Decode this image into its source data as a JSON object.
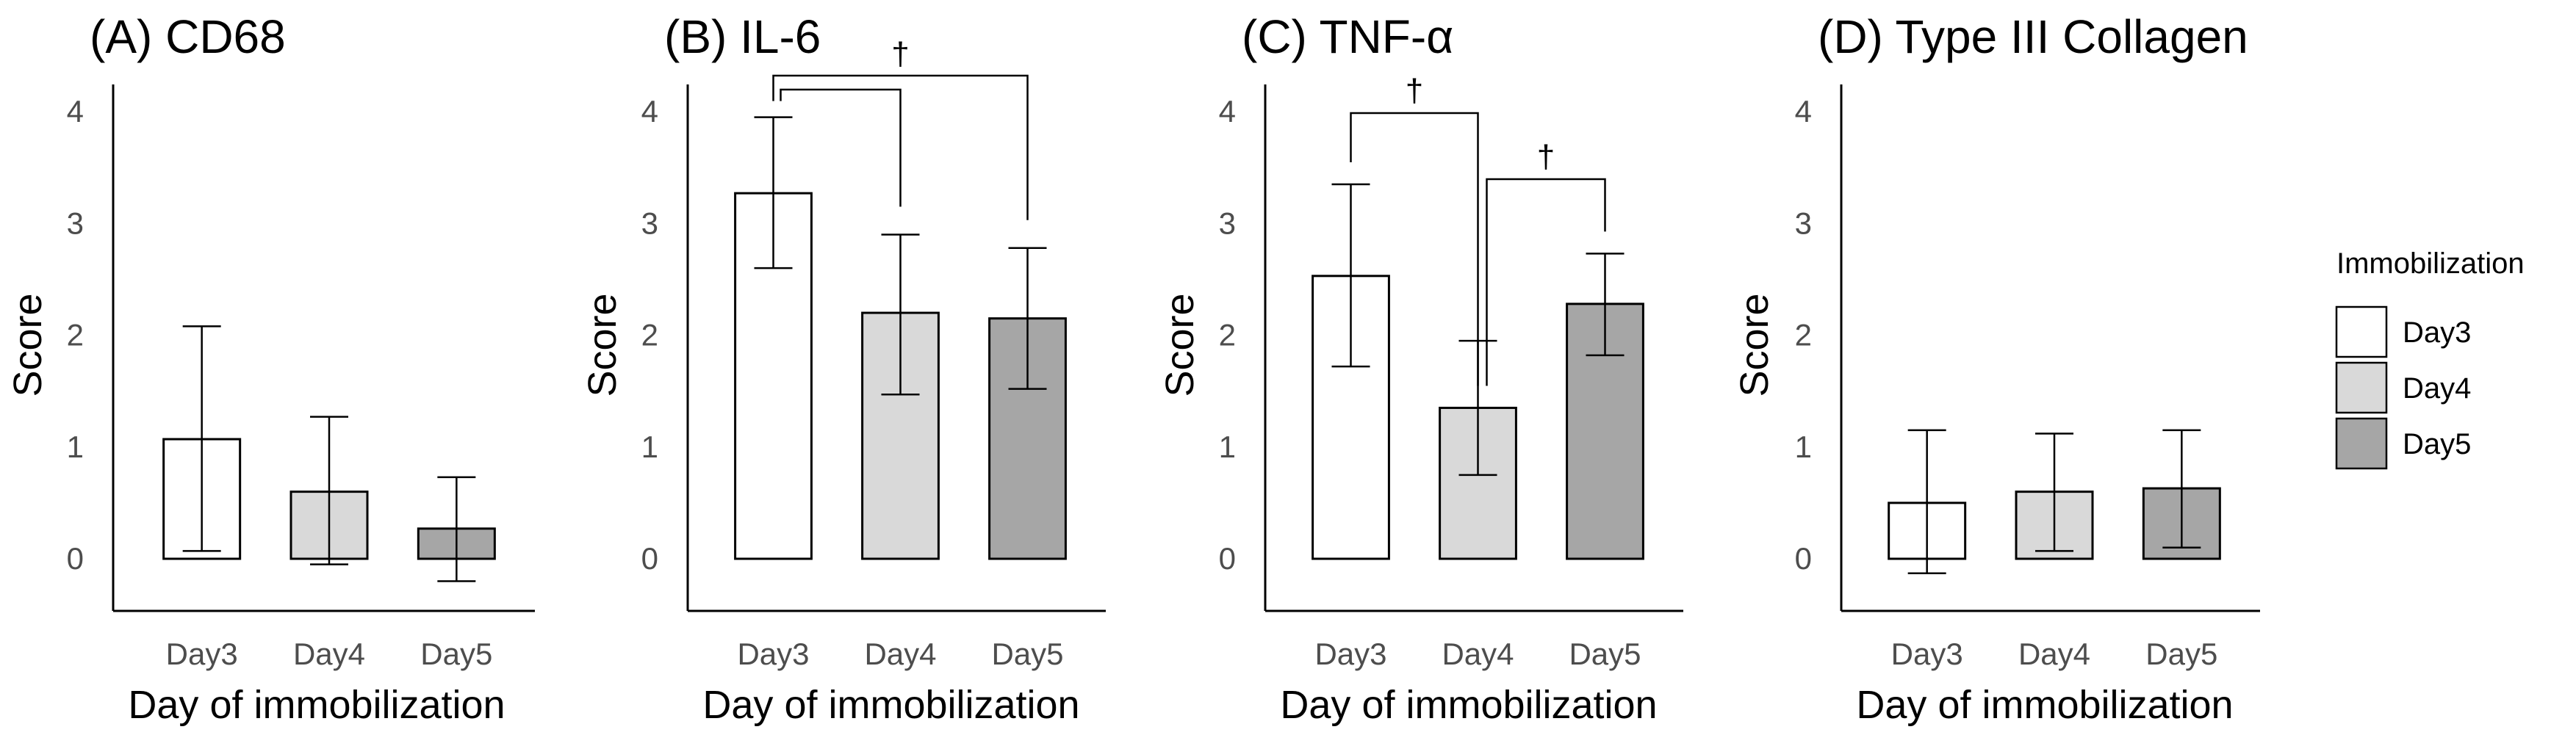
{
  "figure": {
    "legend": {
      "title": "Immobilization",
      "placement": "right",
      "entries": [
        {
          "label": "Day3",
          "color": "#ffffff"
        },
        {
          "label": "Day4",
          "color": "#d9d9d9"
        },
        {
          "label": "Day5",
          "color": "#a6a6a6"
        }
      ]
    }
  },
  "chart_data": [
    {
      "type": "bar",
      "title": "(A) CD68",
      "xlabel": "Day of immobilization",
      "ylabel": "Score",
      "ylim": [
        0,
        4
      ],
      "yticks": [
        "0",
        "1",
        "2",
        "3",
        "4"
      ],
      "categories": [
        "Day3",
        "Day4",
        "Day5"
      ],
      "values": [
        1.07,
        0.6,
        0.27
      ],
      "error_low": [
        0.07,
        -0.05,
        -0.2
      ],
      "error_high": [
        2.08,
        1.27,
        0.73
      ],
      "significance": []
    },
    {
      "type": "bar",
      "title": "(B) IL-6",
      "xlabel": "Day of immobilization",
      "ylabel": "Score",
      "ylim": [
        0,
        4
      ],
      "yticks": [
        "0",
        "1",
        "2",
        "3",
        "4"
      ],
      "categories": [
        "Day3",
        "Day4",
        "Day5"
      ],
      "values": [
        3.27,
        2.2,
        2.15
      ],
      "error_low": [
        2.6,
        1.47,
        1.52
      ],
      "error_high": [
        3.95,
        2.9,
        2.78
      ],
      "significance": [
        {
          "from": 0,
          "to": 1,
          "label": "†"
        },
        {
          "from": 0,
          "to": 2,
          "label": "†"
        }
      ]
    },
    {
      "type": "bar",
      "title": "(C) TNF-α",
      "xlabel": "Day of immobilization",
      "ylabel": "Score",
      "ylim": [
        0,
        4
      ],
      "yticks": [
        "0",
        "1",
        "2",
        "3",
        "4"
      ],
      "categories": [
        "Day3",
        "Day4",
        "Day5"
      ],
      "values": [
        2.53,
        1.35,
        2.28
      ],
      "error_low": [
        1.72,
        0.75,
        1.82
      ],
      "error_high": [
        3.35,
        1.95,
        2.73
      ],
      "significance": [
        {
          "from": 0,
          "to": 1,
          "label": "†"
        },
        {
          "from": 1,
          "to": 2,
          "label": "†"
        }
      ]
    },
    {
      "type": "bar",
      "title": "(D) Type III Collagen",
      "xlabel": "Day of immobilization",
      "ylabel": "Score",
      "ylim": [
        0,
        4
      ],
      "yticks": [
        "0",
        "1",
        "2",
        "3",
        "4"
      ],
      "categories": [
        "Day3",
        "Day4",
        "Day5"
      ],
      "values": [
        0.5,
        0.6,
        0.63
      ],
      "error_low": [
        -0.13,
        0.07,
        0.1
      ],
      "error_high": [
        1.15,
        1.12,
        1.15
      ],
      "significance": []
    }
  ]
}
